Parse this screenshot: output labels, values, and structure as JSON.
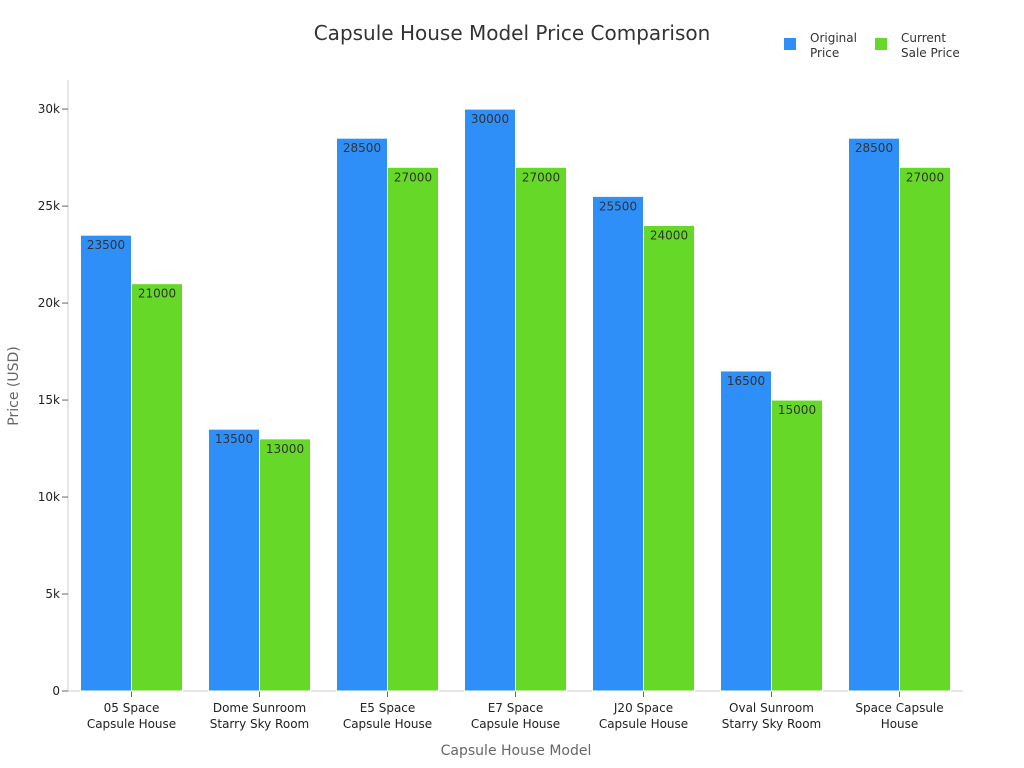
{
  "chart_data": {
    "type": "bar",
    "title": "Capsule House Model Price Comparison",
    "xlabel": "Capsule House Model",
    "ylabel": "Price (USD)",
    "ylim": [
      0,
      31500
    ],
    "yticks": [
      0,
      5000,
      10000,
      15000,
      20000,
      25000,
      30000
    ],
    "ytick_labels": [
      "0",
      "5k",
      "10k",
      "15k",
      "20k",
      "25k",
      "30k"
    ],
    "grid": false,
    "legend_position": "top-right",
    "categories": [
      [
        "05 Space",
        "Capsule House"
      ],
      [
        "Dome Sunroom",
        "Starry Sky Room"
      ],
      [
        "E5 Space",
        "Capsule House"
      ],
      [
        "E7 Space",
        "Capsule House"
      ],
      [
        "J20 Space",
        "Capsule House"
      ],
      [
        "Oval Sunroom",
        "Starry Sky Room"
      ],
      [
        "Space Capsule",
        "House"
      ]
    ],
    "series": [
      {
        "name": [
          "Original",
          "Price"
        ],
        "color": "#2f8ff8",
        "values": [
          23500,
          13500,
          28500,
          30000,
          25500,
          16500,
          28500
        ]
      },
      {
        "name": [
          "Current",
          "Sale Price"
        ],
        "color": "#66d928",
        "values": [
          21000,
          13000,
          27000,
          27000,
          24000,
          15000,
          27000
        ]
      }
    ]
  }
}
